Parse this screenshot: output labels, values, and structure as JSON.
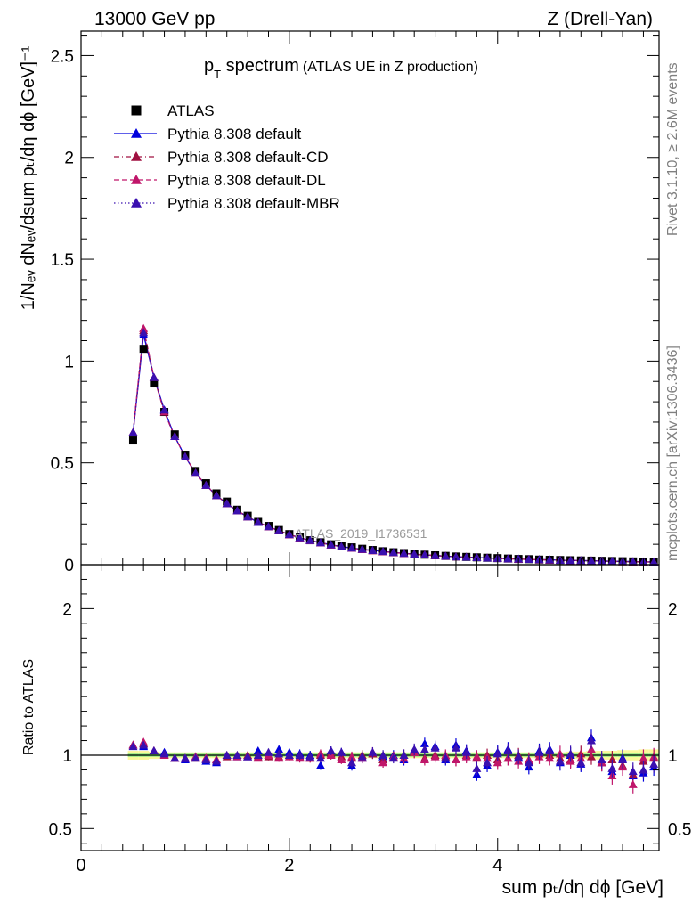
{
  "header": {
    "left": "13000 GeV pp",
    "right": "Z (Drell-Yan)"
  },
  "title": {
    "main": "p",
    "sub": "T",
    "rest": " spectrum",
    "note": "(ATLAS UE in Z production)"
  },
  "side_labels": {
    "rivet": "Rivet 3.1.10, ≥ 2.6M events",
    "mcplots": "mcplots.cern.ch [arXiv:1306.3436]"
  },
  "watermark": "ATLAS_2019_I1736531",
  "axes": {
    "top_ylabel": "1/Nₑᵥ dNₑᵥ/dsum pₜ/dη dϕ [GeV]⁻¹",
    "bottom_ylabel": "Ratio to ATLAS",
    "xlabel": "sum pₜ/dη dϕ [GeV]"
  },
  "chart_data": [
    {
      "type": "scatter",
      "panel": "main",
      "xlim": [
        0,
        5.55
      ],
      "ylim": [
        0,
        2.62
      ],
      "xticks": [
        0,
        2,
        4
      ],
      "yticks": [
        0,
        0.5,
        1,
        1.5,
        2,
        2.5
      ],
      "ytick_labels": [
        "0",
        "0.5",
        "1",
        "1.5",
        "2",
        "2.5"
      ],
      "legend_position": "top-left",
      "x": [
        0.5,
        0.6,
        0.7,
        0.8,
        0.9,
        1.0,
        1.1,
        1.2,
        1.3,
        1.4,
        1.5,
        1.6,
        1.7,
        1.8,
        1.9,
        2.0,
        2.1,
        2.2,
        2.3,
        2.4,
        2.5,
        2.6,
        2.7,
        2.8,
        2.9,
        3.0,
        3.1,
        3.2,
        3.3,
        3.4,
        3.5,
        3.6,
        3.7,
        3.8,
        3.9,
        4.0,
        4.1,
        4.2,
        4.3,
        4.4,
        4.5,
        4.6,
        4.7,
        4.8,
        4.9,
        5.0,
        5.1,
        5.2,
        5.3,
        5.4,
        5.5
      ],
      "series": [
        {
          "name": "ATLAS",
          "color": "#000000",
          "marker": "square",
          "line": "none",
          "values": [
            0.61,
            1.06,
            0.89,
            0.75,
            0.64,
            0.54,
            0.46,
            0.4,
            0.35,
            0.31,
            0.27,
            0.24,
            0.21,
            0.19,
            0.17,
            0.15,
            0.135,
            0.12,
            0.11,
            0.1,
            0.09,
            0.085,
            0.078,
            0.072,
            0.066,
            0.061,
            0.057,
            0.053,
            0.049,
            0.046,
            0.043,
            0.04,
            0.038,
            0.036,
            0.034,
            0.032,
            0.03,
            0.028,
            0.027,
            0.025,
            0.024,
            0.023,
            0.022,
            0.021,
            0.02,
            0.019,
            0.018,
            0.017,
            0.016,
            0.015,
            0.014
          ]
        },
        {
          "name": "Pythia 8.308 default",
          "color": "#0000dd",
          "marker": "triangle",
          "line": "solid",
          "values": [
            0.65,
            1.13,
            0.92,
            0.76,
            0.63,
            0.53,
            0.45,
            0.39,
            0.34,
            0.3,
            0.265,
            0.235,
            0.208,
            0.187,
            0.167,
            0.148,
            0.133,
            0.119,
            0.108,
            0.098,
            0.089,
            0.082,
            0.076,
            0.07,
            0.065,
            0.06,
            0.056,
            0.052,
            0.048,
            0.045,
            0.042,
            0.039,
            0.037,
            0.035,
            0.033,
            0.031,
            0.029,
            0.028,
            0.026,
            0.025,
            0.024,
            0.022,
            0.021,
            0.02,
            0.019,
            0.018,
            0.017,
            0.016,
            0.015,
            0.014,
            0.013
          ]
        },
        {
          "name": "Pythia 8.308 default-CD",
          "color": "#a01040",
          "marker": "triangle",
          "line": "dashdot",
          "values": [
            0.65,
            1.15,
            0.92,
            0.75,
            0.63,
            0.53,
            0.45,
            0.39,
            0.34,
            0.3,
            0.265,
            0.235,
            0.208,
            0.186,
            0.166,
            0.148,
            0.132,
            0.118,
            0.107,
            0.097,
            0.088,
            0.081,
            0.075,
            0.069,
            0.064,
            0.059,
            0.055,
            0.051,
            0.048,
            0.045,
            0.042,
            0.039,
            0.037,
            0.035,
            0.033,
            0.031,
            0.029,
            0.027,
            0.026,
            0.024,
            0.023,
            0.022,
            0.021,
            0.02,
            0.019,
            0.018,
            0.016,
            0.015,
            0.014,
            0.013,
            0.013
          ]
        },
        {
          "name": "Pythia 8.308 default-DL",
          "color": "#c0166a",
          "marker": "triangle",
          "line": "dashed",
          "values": [
            0.65,
            1.16,
            0.92,
            0.75,
            0.63,
            0.53,
            0.45,
            0.39,
            0.34,
            0.3,
            0.265,
            0.235,
            0.208,
            0.186,
            0.166,
            0.147,
            0.132,
            0.118,
            0.107,
            0.097,
            0.088,
            0.081,
            0.075,
            0.069,
            0.064,
            0.059,
            0.055,
            0.051,
            0.048,
            0.045,
            0.042,
            0.039,
            0.037,
            0.035,
            0.033,
            0.031,
            0.029,
            0.027,
            0.026,
            0.024,
            0.023,
            0.022,
            0.021,
            0.02,
            0.019,
            0.018,
            0.016,
            0.015,
            0.014,
            0.013,
            0.013
          ]
        },
        {
          "name": "Pythia 8.308 default-MBR",
          "color": "#3a10b0",
          "marker": "triangle",
          "line": "dotted",
          "values": [
            0.65,
            1.14,
            0.92,
            0.76,
            0.63,
            0.53,
            0.45,
            0.39,
            0.34,
            0.3,
            0.265,
            0.235,
            0.208,
            0.187,
            0.167,
            0.148,
            0.133,
            0.119,
            0.108,
            0.098,
            0.089,
            0.082,
            0.076,
            0.07,
            0.065,
            0.06,
            0.056,
            0.052,
            0.048,
            0.045,
            0.042,
            0.039,
            0.037,
            0.035,
            0.033,
            0.031,
            0.029,
            0.028,
            0.026,
            0.025,
            0.024,
            0.022,
            0.021,
            0.02,
            0.019,
            0.018,
            0.017,
            0.016,
            0.015,
            0.014,
            0.013
          ]
        }
      ]
    },
    {
      "type": "scatter",
      "panel": "ratio",
      "xlim": [
        0,
        5.55
      ],
      "ylim": [
        0.35,
        2.3
      ],
      "xticks": [
        0,
        2,
        4
      ],
      "xtick_labels": [
        "0",
        "2",
        "4"
      ],
      "yticks": [
        0.5,
        1,
        2
      ],
      "ytick_labels": [
        "0.5",
        "1",
        "2"
      ],
      "band_colors": [
        "#fbf89a",
        "#7fe87f"
      ],
      "band_inner": 0.01,
      "band_outer": [
        0.03,
        0.03,
        0.025,
        0.02,
        0.02,
        0.02,
        0.02,
        0.02,
        0.02,
        0.02,
        0.02,
        0.02,
        0.02,
        0.02,
        0.02,
        0.02,
        0.02,
        0.02,
        0.02,
        0.02,
        0.02,
        0.02,
        0.02,
        0.02,
        0.02,
        0.02,
        0.02,
        0.02,
        0.02,
        0.02,
        0.02,
        0.02,
        0.02,
        0.02,
        0.02,
        0.02,
        0.02,
        0.02,
        0.02,
        0.02,
        0.02,
        0.02,
        0.025,
        0.025,
        0.03,
        0.03,
        0.03,
        0.035,
        0.035,
        0.04,
        0.04
      ],
      "series": [
        {
          "name": "Pythia 8.308 default",
          "color": "#0000dd",
          "values": [
            1.07,
            1.06,
            1.03,
            1.02,
            0.98,
            0.97,
            0.99,
            0.96,
            0.95,
            1.0,
            0.99,
            0.99,
            1.03,
            1.0,
            1.04,
            1.02,
            1.01,
            1.0,
            0.93,
            1.03,
            1.02,
            0.93,
            0.98,
            1.01,
            0.99,
            1.0,
            0.97,
            1.03,
            1.08,
            1.06,
            0.97,
            1.07,
            1.03,
            0.87,
            0.93,
            1.02,
            1.04,
            0.98,
            0.92,
            1.03,
            1.04,
            0.95,
            1.0,
            0.94,
            1.12,
            0.95,
            0.89,
            0.98,
            0.86,
            0.88,
            0.92
          ],
          "errors": [
            0.015,
            0.015,
            0.015,
            0.015,
            0.015,
            0.015,
            0.015,
            0.02,
            0.02,
            0.02,
            0.02,
            0.02,
            0.02,
            0.025,
            0.025,
            0.025,
            0.03,
            0.03,
            0.03,
            0.03,
            0.03,
            0.035,
            0.035,
            0.035,
            0.035,
            0.035,
            0.04,
            0.04,
            0.04,
            0.04,
            0.04,
            0.045,
            0.045,
            0.045,
            0.045,
            0.05,
            0.05,
            0.05,
            0.05,
            0.05,
            0.05,
            0.055,
            0.055,
            0.055,
            0.055,
            0.06,
            0.06,
            0.06,
            0.06,
            0.06,
            0.06
          ]
        },
        {
          "name": "Pythia 8.308 default-CD",
          "color": "#a01040",
          "values": [
            1.07,
            1.08,
            1.03,
            1.0,
            0.98,
            0.98,
            0.98,
            0.98,
            0.97,
            0.99,
            1.0,
            1.0,
            0.99,
            0.99,
            0.99,
            1.0,
            0.99,
            0.98,
            1.0,
            1.01,
            0.99,
            0.98,
            1.0,
            1.01,
            0.97,
            0.99,
            1.0,
            1.02,
            0.98,
            1.0,
            0.99,
            0.97,
            1.0,
            0.98,
            1.0,
            0.97,
            0.98,
            1.0,
            0.96,
            1.01,
            1.0,
            0.98,
            0.97,
            1.01,
            0.99,
            0.95,
            0.97,
            0.93,
            0.87,
            0.96,
            0.98
          ],
          "errors": [
            0.015,
            0.015,
            0.015,
            0.015,
            0.015,
            0.015,
            0.015,
            0.02,
            0.02,
            0.02,
            0.02,
            0.02,
            0.02,
            0.025,
            0.025,
            0.025,
            0.03,
            0.03,
            0.03,
            0.03,
            0.03,
            0.035,
            0.035,
            0.035,
            0.035,
            0.035,
            0.04,
            0.04,
            0.04,
            0.04,
            0.04,
            0.045,
            0.045,
            0.045,
            0.045,
            0.05,
            0.05,
            0.05,
            0.05,
            0.05,
            0.05,
            0.055,
            0.055,
            0.055,
            0.055,
            0.06,
            0.06,
            0.06,
            0.06,
            0.06,
            0.06
          ]
        },
        {
          "name": "Pythia 8.308 default-DL",
          "color": "#c0166a",
          "values": [
            1.07,
            1.09,
            1.03,
            1.0,
            0.98,
            0.98,
            0.99,
            0.98,
            0.97,
            1.0,
            0.99,
            0.99,
            0.98,
            1.0,
            0.98,
            0.99,
            0.98,
            0.98,
            1.01,
            1.0,
            0.97,
            0.99,
            0.98,
            1.02,
            0.95,
            0.99,
            0.98,
            1.02,
            0.97,
            0.99,
            1.0,
            0.97,
            0.99,
            0.99,
            0.98,
            0.95,
            0.98,
            0.96,
            0.97,
            0.99,
            0.98,
            1.01,
            0.96,
            0.98,
            1.04,
            0.95,
            0.86,
            0.92,
            0.8,
            0.98,
            0.99
          ],
          "errors": [
            0.015,
            0.015,
            0.015,
            0.015,
            0.015,
            0.015,
            0.015,
            0.02,
            0.02,
            0.02,
            0.02,
            0.02,
            0.02,
            0.025,
            0.025,
            0.025,
            0.03,
            0.03,
            0.03,
            0.03,
            0.03,
            0.035,
            0.035,
            0.035,
            0.035,
            0.035,
            0.04,
            0.04,
            0.04,
            0.04,
            0.04,
            0.045,
            0.045,
            0.045,
            0.045,
            0.05,
            0.05,
            0.05,
            0.05,
            0.05,
            0.05,
            0.055,
            0.055,
            0.055,
            0.055,
            0.06,
            0.06,
            0.06,
            0.06,
            0.06,
            0.06
          ]
        },
        {
          "name": "Pythia 8.308 default-MBR",
          "color": "#3a10b0",
          "values": [
            1.06,
            1.07,
            1.03,
            1.01,
            0.98,
            0.98,
            0.98,
            0.97,
            0.96,
            1.0,
            1.0,
            0.99,
            1.0,
            1.02,
            1.01,
            1.0,
            1.0,
            0.99,
            0.98,
            1.03,
            1.02,
            0.95,
            0.99,
            1.02,
            1.0,
            0.98,
            1.0,
            1.04,
            1.04,
            1.05,
            0.98,
            1.05,
            1.02,
            0.91,
            0.95,
            1.01,
            1.03,
            0.99,
            0.95,
            1.02,
            1.03,
            0.96,
            1.01,
            0.95,
            1.1,
            0.97,
            0.91,
            0.97,
            0.89,
            0.9,
            0.94
          ],
          "errors": [
            0.015,
            0.015,
            0.015,
            0.015,
            0.015,
            0.015,
            0.015,
            0.02,
            0.02,
            0.02,
            0.02,
            0.02,
            0.02,
            0.025,
            0.025,
            0.025,
            0.03,
            0.03,
            0.03,
            0.03,
            0.03,
            0.035,
            0.035,
            0.035,
            0.035,
            0.035,
            0.04,
            0.04,
            0.04,
            0.04,
            0.04,
            0.045,
            0.045,
            0.045,
            0.045,
            0.05,
            0.05,
            0.05,
            0.05,
            0.05,
            0.05,
            0.055,
            0.055,
            0.055,
            0.055,
            0.06,
            0.06,
            0.06,
            0.06,
            0.06,
            0.06
          ]
        }
      ]
    }
  ]
}
